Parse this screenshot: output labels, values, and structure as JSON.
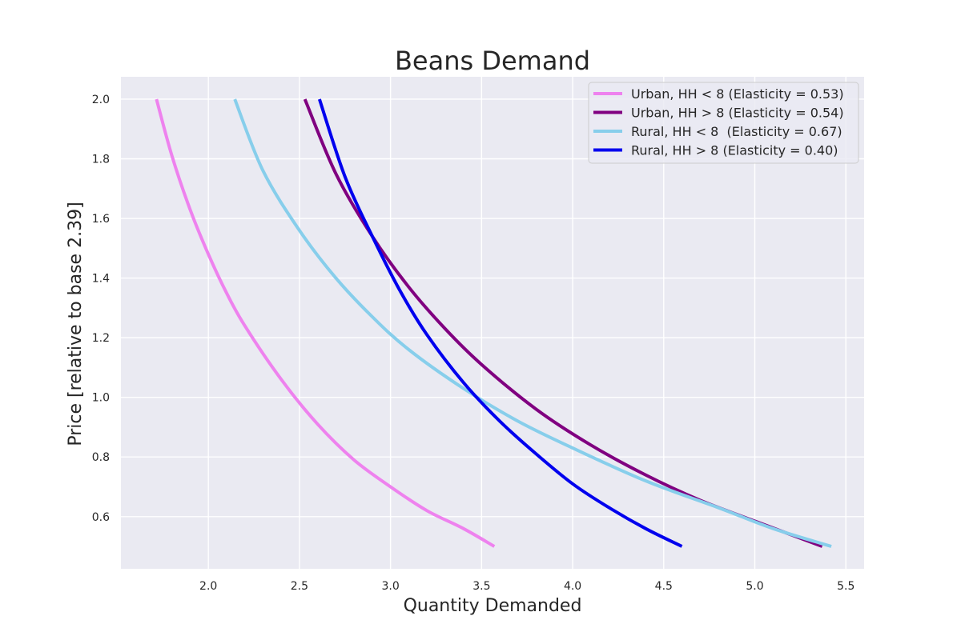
{
  "chart_data": {
    "type": "line",
    "title": "Beans Demand",
    "xlabel": "Quantity Demanded",
    "ylabel": "Price [relative to base 2.39]",
    "xlim": [
      1.52,
      5.6
    ],
    "ylim": [
      0.425,
      2.075
    ],
    "xticks": [
      2.0,
      2.5,
      3.0,
      3.5,
      4.0,
      4.5,
      5.0,
      5.5
    ],
    "xtick_labels": [
      "2.0",
      "2.5",
      "3.0",
      "3.5",
      "4.0",
      "4.5",
      "5.0",
      "5.5"
    ],
    "yticks": [
      0.6,
      0.8,
      1.0,
      1.2,
      1.4,
      1.6,
      1.8,
      2.0
    ],
    "ytick_labels": [
      "0.6",
      "0.8",
      "1.0",
      "1.2",
      "1.4",
      "1.6",
      "1.8",
      "2.0"
    ],
    "grid": true,
    "background_color": "#eaeaf2",
    "legend_position": "top-right",
    "series": [
      {
        "name": "Urban, HH < 8 (Elasticity = 0.53)",
        "color": "#ee82ee",
        "points": [
          [
            1.715,
            2.0
          ],
          [
            1.8,
            1.81
          ],
          [
            1.9,
            1.63
          ],
          [
            2.0,
            1.48
          ],
          [
            2.1,
            1.35
          ],
          [
            2.2,
            1.24
          ],
          [
            2.4,
            1.06
          ],
          [
            2.6,
            0.91
          ],
          [
            2.8,
            0.79
          ],
          [
            3.0,
            0.7
          ],
          [
            3.2,
            0.62
          ],
          [
            3.4,
            0.56
          ],
          [
            3.57,
            0.5
          ]
        ]
      },
      {
        "name": "Urban, HH > 8 (Elasticity = 0.54)",
        "color": "#800080",
        "points": [
          [
            2.53,
            2.0
          ],
          [
            2.7,
            1.75
          ],
          [
            2.9,
            1.54
          ],
          [
            3.1,
            1.37
          ],
          [
            3.3,
            1.23
          ],
          [
            3.5,
            1.11
          ],
          [
            3.8,
            0.96
          ],
          [
            4.1,
            0.84
          ],
          [
            4.4,
            0.74
          ],
          [
            4.7,
            0.655
          ],
          [
            5.0,
            0.585
          ],
          [
            5.37,
            0.5
          ]
        ]
      },
      {
        "name": "Rural, HH < 8  (Elasticity = 0.67)",
        "color": "#87ceeb",
        "points": [
          [
            2.145,
            2.0
          ],
          [
            2.3,
            1.76
          ],
          [
            2.5,
            1.56
          ],
          [
            2.7,
            1.4
          ],
          [
            2.9,
            1.27
          ],
          [
            3.1,
            1.16
          ],
          [
            3.4,
            1.03
          ],
          [
            3.7,
            0.92
          ],
          [
            4.0,
            0.83
          ],
          [
            4.4,
            0.72
          ],
          [
            4.8,
            0.63
          ],
          [
            5.1,
            0.56
          ],
          [
            5.42,
            0.5
          ]
        ]
      },
      {
        "name": "Rural, HH > 8 (Elasticity = 0.40)",
        "color": "#0000ee",
        "points": [
          [
            2.61,
            2.0
          ],
          [
            2.75,
            1.74
          ],
          [
            2.9,
            1.54
          ],
          [
            3.05,
            1.36
          ],
          [
            3.2,
            1.21
          ],
          [
            3.4,
            1.05
          ],
          [
            3.6,
            0.92
          ],
          [
            3.8,
            0.81
          ],
          [
            4.0,
            0.71
          ],
          [
            4.2,
            0.63
          ],
          [
            4.4,
            0.56
          ],
          [
            4.6,
            0.5
          ]
        ]
      }
    ]
  }
}
